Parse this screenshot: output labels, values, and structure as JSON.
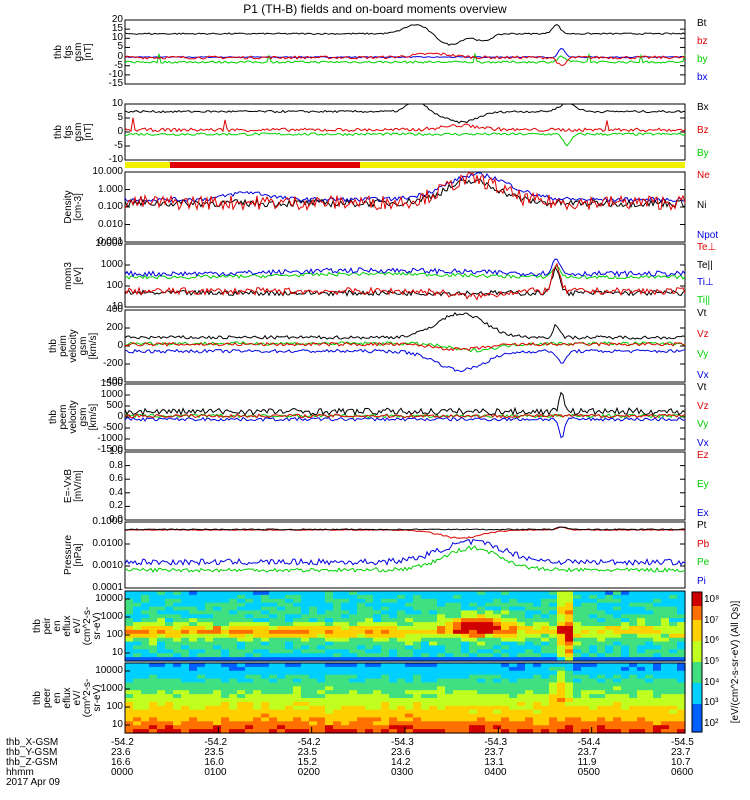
{
  "title": "P1 (TH-B) fields and on-board moments overview",
  "colors": {
    "black": "#000000",
    "red": "#e00000",
    "green": "#00d000",
    "blue": "#0000e0",
    "yellow": "#f0f000",
    "barred": "#e00000"
  },
  "chart_data": [
    {
      "type": "line",
      "id": "fgs_gsm",
      "ylabel": [
        "thb",
        "fgs",
        "gsm",
        "[nT]"
      ],
      "yticks": [
        "20",
        "15",
        "10",
        "5",
        "0",
        "-5",
        "-10",
        "-15"
      ],
      "ylim": [
        -15,
        20
      ],
      "series": [
        {
          "name": "Bt",
          "color": "black",
          "key": "bt"
        },
        {
          "name": "bz",
          "color": "red",
          "key": "bz"
        },
        {
          "name": "by",
          "color": "green",
          "key": "by"
        },
        {
          "name": "bx",
          "color": "blue",
          "key": "bx"
        }
      ]
    },
    {
      "type": "line",
      "id": "fgs_gsm2",
      "ylabel": [
        "thb",
        "fgs",
        "gsm",
        "[nT]"
      ],
      "yticks": [
        "10",
        "5",
        "0",
        "-5",
        "-10"
      ],
      "ylim": [
        -14,
        12
      ],
      "series": [
        {
          "name": "Bx",
          "color": "black",
          "key": "bt2"
        },
        {
          "name": "Bz",
          "color": "red",
          "key": "bz2"
        },
        {
          "name": "By",
          "color": "green",
          "key": "by2"
        }
      ]
    },
    {
      "type": "line",
      "id": "density",
      "ylabel": [
        "Density",
        "[cm-3]"
      ],
      "yticks": [
        "10.000",
        "1.000",
        "0.100",
        "0.010",
        "0.001"
      ],
      "ylim": [
        0.0003,
        20
      ],
      "log": true,
      "series": [
        {
          "name": "Ne",
          "color": "red",
          "key": "ne"
        },
        {
          "name": "Ni",
          "color": "black",
          "key": "ni"
        },
        {
          "name": "Npot",
          "color": "blue",
          "key": "npot"
        }
      ]
    },
    {
      "type": "line",
      "id": "temp",
      "ylabel": [
        "mom3",
        "[eV]"
      ],
      "yticks": [
        "10000",
        "1000",
        "100",
        "10"
      ],
      "ylim": [
        5,
        20000
      ],
      "log": true,
      "series": [
        {
          "name": "Te⊥",
          "color": "red",
          "key": "tep"
        },
        {
          "name": "Te||",
          "color": "black",
          "key": "tel"
        },
        {
          "name": "Ti⊥",
          "color": "blue",
          "key": "tip"
        },
        {
          "name": "Ti||",
          "color": "green",
          "key": "til"
        }
      ]
    },
    {
      "type": "line",
      "id": "peim",
      "ylabel": [
        "thb",
        "peim",
        "velocity",
        "gsm",
        "[km/s]"
      ],
      "yticks": [
        "400",
        "200",
        "0",
        "-200",
        "-400"
      ],
      "ylim": [
        -420,
        420
      ],
      "series": [
        {
          "name": "Vt",
          "color": "black",
          "key": "vt"
        },
        {
          "name": "Vz",
          "color": "red",
          "key": "vz"
        },
        {
          "name": "Vy",
          "color": "green",
          "key": "vy"
        },
        {
          "name": "Vx",
          "color": "blue",
          "key": "vx"
        }
      ]
    },
    {
      "type": "line",
      "id": "peem",
      "ylabel": [
        "thb",
        "peem",
        "velocity",
        "gsm",
        "[km/s]"
      ],
      "yticks": [
        "1500",
        "1000",
        "500",
        "0",
        "-500",
        "-1000",
        "-1500"
      ],
      "ylim": [
        -1500,
        1500
      ],
      "series": [
        {
          "name": "Vt",
          "color": "black",
          "key": "vt2"
        },
        {
          "name": "Vz",
          "color": "red",
          "key": "vz2"
        },
        {
          "name": "Vy",
          "color": "green",
          "key": "vy2"
        },
        {
          "name": "Vx",
          "color": "blue",
          "key": "vx2"
        }
      ]
    },
    {
      "type": "line",
      "id": "efield",
      "ylabel": [
        "E=-VxB",
        "[mV/m]"
      ],
      "yticks": [
        "1.0",
        "0.8",
        "0.6",
        "0.4",
        "0.2",
        "0.0"
      ],
      "ylim": [
        0,
        1
      ],
      "series": [
        {
          "name": "Ez",
          "color": "red",
          "key": "none"
        },
        {
          "name": "Ey",
          "color": "green",
          "key": "none"
        },
        {
          "name": "Ex",
          "color": "blue",
          "key": "none"
        }
      ]
    },
    {
      "type": "line",
      "id": "pressure",
      "ylabel": [
        "Pressure",
        "[nPa]"
      ],
      "yticks": [
        "0.1000",
        "0.0100",
        "0.0010",
        "0.0001"
      ],
      "ylim": [
        0.0001,
        0.2
      ],
      "log": true,
      "series": [
        {
          "name": "Pt",
          "color": "black",
          "key": "pt"
        },
        {
          "name": "Pb",
          "color": "red",
          "key": "pb"
        },
        {
          "name": "Pe",
          "color": "green",
          "key": "pe"
        },
        {
          "name": "Pi",
          "color": "blue",
          "key": "pi"
        }
      ]
    },
    {
      "type": "heatmap",
      "id": "peir",
      "ylabel": [
        "thb",
        "peir",
        "en",
        "eflux",
        "eV/",
        "(cm^2-s-",
        "sr-eV)"
      ],
      "yticks": [
        "10000",
        "1000",
        "100",
        "10"
      ]
    },
    {
      "type": "heatmap",
      "id": "peer",
      "ylabel": [
        "thb",
        "peer",
        "en",
        "eflux",
        "eV/",
        "(cm^2-s-",
        "sr-eV)"
      ],
      "yticks": [
        "10000",
        "1000",
        "100",
        "10"
      ]
    }
  ],
  "colorbar": {
    "ticks": [
      "10⁸",
      "10⁷",
      "10⁶",
      "10⁵",
      "10⁴",
      "10³",
      "10²"
    ],
    "label1": "eV/(cm^2-s-sr-eV)",
    "label2": "[eV/(cm^2-s-sr-eV) (All Qs)]"
  },
  "xaxis": {
    "rows": [
      {
        "label": "thb_X-GSM",
        "values": [
          "-54.2",
          "-54.2",
          "-54.2",
          "-54.3",
          "-54.3",
          "-54.4",
          "-54.5"
        ]
      },
      {
        "label": "thb_Y-GSM",
        "values": [
          "23.6",
          "23.5",
          "23.5",
          "23.6",
          "23.7",
          "23.7",
          "23.7"
        ]
      },
      {
        "label": "thb_Z-GSM",
        "values": [
          "16.6",
          "16.0",
          "15.2",
          "14.2",
          "13.1",
          "11.9",
          "10.7"
        ]
      },
      {
        "label": "hhmm",
        "values": [
          "0000",
          "0100",
          "0200",
          "0300",
          "0400",
          "0500",
          "0600"
        ]
      }
    ],
    "date": "2017 Apr 09"
  }
}
